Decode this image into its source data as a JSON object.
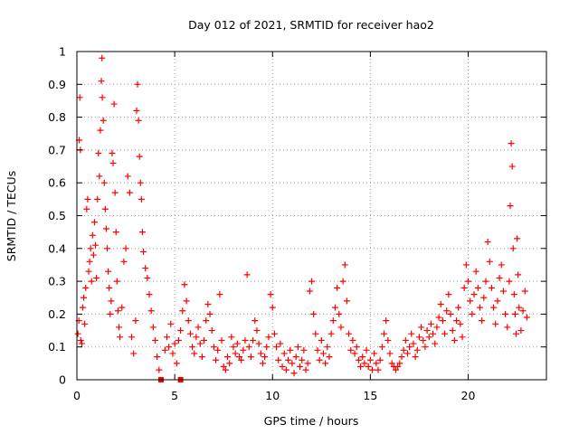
{
  "chart_data": {
    "type": "scatter",
    "title": "Day 012 of 2021, SRMTID for receiver hao2",
    "xlabel": "GPS time / hours",
    "ylabel": "SRMTID / TECUs",
    "xlim": [
      0,
      24
    ],
    "ylim": [
      0,
      1
    ],
    "x_ticks": [
      0,
      5,
      10,
      15,
      20
    ],
    "x_tick_labels": [
      "0",
      "5",
      "10",
      "15",
      "20"
    ],
    "y_ticks": [
      0,
      0.1,
      0.2,
      0.3,
      0.4,
      0.5,
      0.6,
      0.7,
      0.8,
      0.9,
      1
    ],
    "y_tick_labels": [
      "0",
      "0.1",
      "0.2",
      "0.3",
      "0.4",
      "0.5",
      "0.6",
      "0.7",
      "0.8",
      "0.9",
      "1"
    ],
    "grid": true,
    "marker": "plus",
    "color": "#ff0000",
    "series": [
      {
        "name": "SRMTID",
        "points": [
          [
            0.05,
            0.14
          ],
          [
            0.1,
            0.18
          ],
          [
            0.12,
            0.73
          ],
          [
            0.15,
            0.86
          ],
          [
            0.18,
            0.7
          ],
          [
            0.2,
            0.12
          ],
          [
            0.25,
            0.11
          ],
          [
            0.3,
            0.22
          ],
          [
            0.35,
            0.25
          ],
          [
            0.4,
            0.17
          ],
          [
            0.45,
            0.28
          ],
          [
            0.5,
            0.52
          ],
          [
            0.55,
            0.55
          ],
          [
            0.6,
            0.33
          ],
          [
            0.65,
            0.36
          ],
          [
            0.7,
            0.4
          ],
          [
            0.75,
            0.3
          ],
          [
            0.8,
            0.44
          ],
          [
            0.85,
            0.38
          ],
          [
            0.9,
            0.48
          ],
          [
            0.95,
            0.41
          ],
          [
            1.0,
            0.31
          ],
          [
            1.05,
            0.55
          ],
          [
            1.1,
            0.69
          ],
          [
            1.15,
            0.62
          ],
          [
            1.2,
            0.76
          ],
          [
            1.25,
            0.91
          ],
          [
            1.28,
            0.98
          ],
          [
            1.3,
            0.86
          ],
          [
            1.35,
            0.79
          ],
          [
            1.4,
            0.6
          ],
          [
            1.45,
            0.52
          ],
          [
            1.5,
            0.46
          ],
          [
            1.55,
            0.4
          ],
          [
            1.6,
            0.33
          ],
          [
            1.65,
            0.28
          ],
          [
            1.7,
            0.2
          ],
          [
            1.75,
            0.24
          ],
          [
            1.8,
            0.69
          ],
          [
            1.85,
            0.66
          ],
          [
            1.9,
            0.84
          ],
          [
            1.95,
            0.57
          ],
          [
            2.0,
            0.45
          ],
          [
            2.05,
            0.3
          ],
          [
            2.1,
            0.21
          ],
          [
            2.15,
            0.16
          ],
          [
            2.2,
            0.13
          ],
          [
            2.3,
            0.22
          ],
          [
            2.4,
            0.36
          ],
          [
            2.5,
            0.4
          ],
          [
            2.6,
            0.62
          ],
          [
            2.7,
            0.57
          ],
          [
            2.8,
            0.13
          ],
          [
            2.9,
            0.08
          ],
          [
            3.0,
            0.18
          ],
          [
            3.05,
            0.82
          ],
          [
            3.1,
            0.9
          ],
          [
            3.15,
            0.79
          ],
          [
            3.2,
            0.68
          ],
          [
            3.25,
            0.6
          ],
          [
            3.3,
            0.55
          ],
          [
            3.35,
            0.45
          ],
          [
            3.4,
            0.39
          ],
          [
            3.5,
            0.34
          ],
          [
            3.6,
            0.31
          ],
          [
            3.7,
            0.26
          ],
          [
            3.8,
            0.21
          ],
          [
            3.9,
            0.16
          ],
          [
            4.0,
            0.12
          ],
          [
            4.1,
            0.07
          ],
          [
            4.2,
            0.03
          ],
          [
            4.5,
            0.09
          ],
          [
            4.6,
            0.13
          ],
          [
            4.7,
            0.1
          ],
          [
            4.8,
            0.17
          ],
          [
            4.9,
            0.08
          ],
          [
            5.0,
            0.11
          ],
          [
            5.1,
            0.05
          ],
          [
            5.2,
            0.12
          ],
          [
            5.3,
            0.15
          ],
          [
            5.4,
            0.21
          ],
          [
            5.5,
            0.29
          ],
          [
            5.6,
            0.24
          ],
          [
            5.7,
            0.18
          ],
          [
            5.8,
            0.14
          ],
          [
            5.9,
            0.1
          ],
          [
            6.0,
            0.08
          ],
          [
            6.1,
            0.13
          ],
          [
            6.2,
            0.16
          ],
          [
            6.3,
            0.11
          ],
          [
            6.4,
            0.07
          ],
          [
            6.5,
            0.12
          ],
          [
            6.6,
            0.18
          ],
          [
            6.7,
            0.23
          ],
          [
            6.8,
            0.2
          ],
          [
            6.9,
            0.15
          ],
          [
            7.0,
            0.1
          ],
          [
            7.1,
            0.06
          ],
          [
            7.2,
            0.09
          ],
          [
            7.3,
            0.26
          ],
          [
            7.4,
            0.12
          ],
          [
            7.5,
            0.04
          ],
          [
            7.6,
            0.03
          ],
          [
            7.7,
            0.07
          ],
          [
            7.8,
            0.05
          ],
          [
            7.9,
            0.13
          ],
          [
            8.0,
            0.1
          ],
          [
            8.1,
            0.08
          ],
          [
            8.2,
            0.11
          ],
          [
            8.3,
            0.07
          ],
          [
            8.4,
            0.06
          ],
          [
            8.5,
            0.09
          ],
          [
            8.6,
            0.12
          ],
          [
            8.7,
            0.32
          ],
          [
            8.8,
            0.1
          ],
          [
            8.9,
            0.07
          ],
          [
            9.0,
            0.12
          ],
          [
            9.1,
            0.18
          ],
          [
            9.2,
            0.15
          ],
          [
            9.3,
            0.11
          ],
          [
            9.4,
            0.08
          ],
          [
            9.5,
            0.05
          ],
          [
            9.6,
            0.07
          ],
          [
            9.7,
            0.1
          ],
          [
            9.8,
            0.13
          ],
          [
            9.9,
            0.26
          ],
          [
            10.0,
            0.22
          ],
          [
            10.1,
            0.14
          ],
          [
            10.2,
            0.1
          ],
          [
            10.3,
            0.06
          ],
          [
            10.4,
            0.11
          ],
          [
            10.5,
            0.04
          ],
          [
            10.6,
            0.08
          ],
          [
            10.7,
            0.03
          ],
          [
            10.8,
            0.06
          ],
          [
            10.9,
            0.09
          ],
          [
            11.0,
            0.05
          ],
          [
            11.1,
            0.02
          ],
          [
            11.2,
            0.07
          ],
          [
            11.3,
            0.1
          ],
          [
            11.4,
            0.04
          ],
          [
            11.5,
            0.06
          ],
          [
            11.6,
            0.09
          ],
          [
            11.7,
            0.03
          ],
          [
            11.8,
            0.05
          ],
          [
            11.9,
            0.27
          ],
          [
            12.0,
            0.3
          ],
          [
            12.1,
            0.2
          ],
          [
            12.2,
            0.14
          ],
          [
            12.3,
            0.09
          ],
          [
            12.4,
            0.06
          ],
          [
            12.5,
            0.12
          ],
          [
            12.6,
            0.08
          ],
          [
            12.7,
            0.05
          ],
          [
            12.8,
            0.1
          ],
          [
            12.9,
            0.07
          ],
          [
            13.0,
            0.14
          ],
          [
            13.1,
            0.18
          ],
          [
            13.2,
            0.22
          ],
          [
            13.3,
            0.28
          ],
          [
            13.4,
            0.2
          ],
          [
            13.5,
            0.16
          ],
          [
            13.6,
            0.3
          ],
          [
            13.7,
            0.35
          ],
          [
            13.8,
            0.24
          ],
          [
            13.9,
            0.14
          ],
          [
            14.0,
            0.09
          ],
          [
            14.1,
            0.12
          ],
          [
            14.2,
            0.08
          ],
          [
            14.3,
            0.1
          ],
          [
            14.4,
            0.06
          ],
          [
            14.5,
            0.04
          ],
          [
            14.6,
            0.07
          ],
          [
            14.7,
            0.05
          ],
          [
            14.8,
            0.09
          ],
          [
            14.9,
            0.04
          ],
          [
            15.0,
            0.06
          ],
          [
            15.1,
            0.03
          ],
          [
            15.2,
            0.08
          ],
          [
            15.3,
            0.05
          ],
          [
            15.4,
            0.03
          ],
          [
            15.5,
            0.06
          ],
          [
            15.6,
            0.1
          ],
          [
            15.7,
            0.14
          ],
          [
            15.8,
            0.18
          ],
          [
            15.9,
            0.12
          ],
          [
            16.0,
            0.08
          ],
          [
            16.1,
            0.05
          ],
          [
            16.2,
            0.04
          ],
          [
            16.3,
            0.03
          ],
          [
            16.4,
            0.04
          ],
          [
            16.5,
            0.05
          ],
          [
            16.6,
            0.07
          ],
          [
            16.7,
            0.09
          ],
          [
            16.8,
            0.12
          ],
          [
            16.9,
            0.08
          ],
          [
            17.0,
            0.1
          ],
          [
            17.1,
            0.14
          ],
          [
            17.2,
            0.11
          ],
          [
            17.3,
            0.07
          ],
          [
            17.4,
            0.09
          ],
          [
            17.5,
            0.13
          ],
          [
            17.6,
            0.16
          ],
          [
            17.7,
            0.12
          ],
          [
            17.8,
            0.1
          ],
          [
            17.9,
            0.15
          ],
          [
            18.0,
            0.13
          ],
          [
            18.1,
            0.17
          ],
          [
            18.2,
            0.14
          ],
          [
            18.3,
            0.11
          ],
          [
            18.4,
            0.16
          ],
          [
            18.5,
            0.19
          ],
          [
            18.6,
            0.23
          ],
          [
            18.7,
            0.18
          ],
          [
            18.8,
            0.14
          ],
          [
            18.9,
            0.21
          ],
          [
            19.0,
            0.26
          ],
          [
            19.1,
            0.2
          ],
          [
            19.2,
            0.15
          ],
          [
            19.3,
            0.12
          ],
          [
            19.4,
            0.18
          ],
          [
            19.5,
            0.22
          ],
          [
            19.6,
            0.17
          ],
          [
            19.7,
            0.13
          ],
          [
            19.8,
            0.28
          ],
          [
            19.9,
            0.35
          ],
          [
            20.0,
            0.3
          ],
          [
            20.1,
            0.24
          ],
          [
            20.2,
            0.2
          ],
          [
            20.3,
            0.26
          ],
          [
            20.4,
            0.33
          ],
          [
            20.5,
            0.28
          ],
          [
            20.6,
            0.22
          ],
          [
            20.7,
            0.18
          ],
          [
            20.8,
            0.25
          ],
          [
            20.9,
            0.3
          ],
          [
            21.0,
            0.42
          ],
          [
            21.1,
            0.36
          ],
          [
            21.2,
            0.28
          ],
          [
            21.3,
            0.22
          ],
          [
            21.4,
            0.17
          ],
          [
            21.5,
            0.24
          ],
          [
            21.6,
            0.31
          ],
          [
            21.7,
            0.35
          ],
          [
            21.8,
            0.27
          ],
          [
            21.9,
            0.2
          ],
          [
            22.0,
            0.16
          ],
          [
            22.1,
            0.3
          ],
          [
            22.15,
            0.53
          ],
          [
            22.2,
            0.72
          ],
          [
            22.25,
            0.65
          ],
          [
            22.3,
            0.4
          ],
          [
            22.35,
            0.26
          ],
          [
            22.4,
            0.2
          ],
          [
            22.45,
            0.14
          ],
          [
            22.5,
            0.43
          ],
          [
            22.55,
            0.32
          ],
          [
            22.6,
            0.22
          ],
          [
            22.7,
            0.15
          ],
          [
            22.8,
            0.21
          ],
          [
            22.9,
            0.27
          ],
          [
            23.0,
            0.19
          ]
        ]
      }
    ],
    "outlier_markers": [
      [
        4.3,
        0.0
      ],
      [
        5.3,
        0.0
      ]
    ]
  }
}
